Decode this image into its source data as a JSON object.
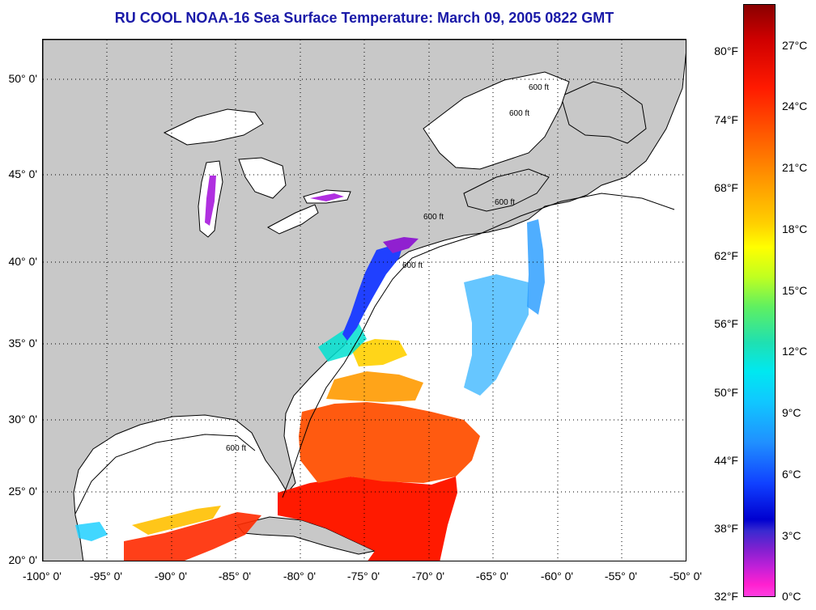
{
  "title": "RU COOL  NOAA-16  Sea Surface Temperature:  March 09, 2005 0822 GMT",
  "map": {
    "lon_range": [
      -100,
      -50
    ],
    "lat_range": [
      20,
      52
    ],
    "lat_labels": [
      "50° 0'",
      "45° 0'",
      "40° 0'",
      "35° 0'",
      "30° 0'",
      "25° 0'",
      "20° 0'"
    ],
    "lon_labels": [
      "-100° 0'",
      "-95° 0'",
      "-90° 0'",
      "-85° 0'",
      "-80° 0'",
      "-75° 0'",
      "-70° 0'",
      "-65° 0'",
      "-60° 0'",
      "-55° 0'",
      "-50° 0'"
    ],
    "grid": "dotted",
    "isobath_label": "600 ft",
    "colors": {
      "land": "#c8c8c8",
      "cloud_mask": "#ffffff",
      "coast": "#000000"
    }
  },
  "colorbar": {
    "fahrenheit_labels": [
      "80°F",
      "74°F",
      "68°F",
      "62°F",
      "56°F",
      "50°F",
      "44°F",
      "38°F",
      "32°F"
    ],
    "celsius_labels": [
      "27°C",
      "24°C",
      "21°C",
      "18°C",
      "15°C",
      "12°C",
      "9°C",
      "6°C",
      "3°C",
      "0°C"
    ]
  }
}
